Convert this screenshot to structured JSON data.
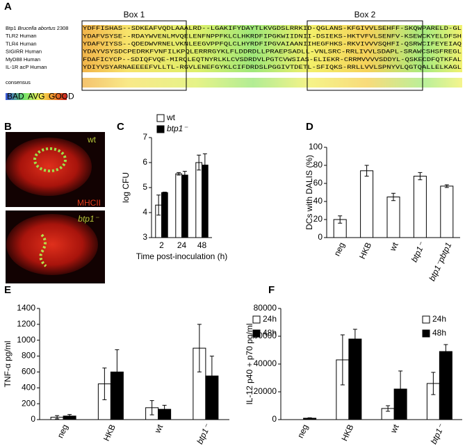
{
  "panel_labels": [
    "A",
    "B",
    "C",
    "D",
    "E",
    "F"
  ],
  "alignment": {
    "box_labels": [
      "Box 1",
      "Box 2"
    ],
    "rows": [
      {
        "name": [
          "Btp1",
          "Brucella abortus",
          "2308"
        ],
        "sequence": "YDFFISHAS--SDKEAFVQDLAAALRD--LGAKIFYDAYTLKVGDSLRRKID-QGLANS-KFGIVVLSEHFF-SKQWPARELD-GL"
      },
      {
        "name": "TLR2 Human",
        "sequence": "YDAFVSYSE--RDAYWVENLMVQELENFNPPFKLCLHKRDFIPGKWIIDNII-DSIEKS-HKTVFVLSENFV-KSEWCKYELDFSH"
      },
      {
        "name": "TLR4 Human",
        "sequence": "YDAFVIYSS--QDEDWVRNELVKNLEEGVPPFQLCLHYRDFIPGVAIAANIIHEGFHKS-RKVIVVVSQHFI-QSRWCIFEYEIAQ"
      },
      {
        "name": "SIGIRR Human",
        "sequence": "YDAYVSYSDCPEDRKFVNFILKPQLERRRGYKLFLDDRDLLPRAEPSADLL-VNLSRC-RRLIVVLSDAPL-SRAWCSHSFREGL"
      },
      {
        "name": "MyD88 Human",
        "sequence": "FDAFICYCP--SDIQFVQE-MIRQLEQTNYRLKLCVSDRDVLPGTCVWSIAS-ELIEKR-CRRMVVVVSDDYL-QSKECDFQTKFAL"
      },
      {
        "name": "IL-1R acP Human",
        "sequence": "YDIYVSYARNAEEEEFVLLTL-RGVLENEFGYKLCIFDRDSLPGGIVTDETL-SFIQKS-RRLLVVLSPNYVLQGTQALLELKAGL"
      }
    ],
    "consensus_label": "consensus",
    "scale_labels": [
      "BAD",
      "AVG",
      "GOOD"
    ]
  },
  "images": {
    "labels": [
      "wt",
      "MHCII",
      "btp1⁻"
    ]
  },
  "chart_data": [
    {
      "type": "bar",
      "ylabel": "log CFU",
      "xlabel": "Time post-inoculation (h)",
      "categories": [
        "2",
        "24",
        "48"
      ],
      "series": [
        {
          "name": "wt",
          "color": "#ffffff",
          "values": [
            4.3,
            5.55,
            6.0
          ],
          "errors": [
            0.4,
            0.05,
            0.3
          ]
        },
        {
          "name": "btp1⁻",
          "color": "#000000",
          "values": [
            4.8,
            5.5,
            5.9
          ],
          "errors": [
            0.02,
            0.15,
            0.45
          ]
        }
      ],
      "ylim": [
        3,
        7
      ],
      "yticks": [
        3,
        4,
        5,
        6,
        7
      ]
    },
    {
      "type": "bar",
      "ylabel": "DCs with DALIS (%)",
      "categories": [
        "neg",
        "HKB",
        "wt",
        "btp1⁻",
        "btp1⁻pbtp1"
      ],
      "values": [
        20,
        74,
        45,
        68,
        57
      ],
      "errors": [
        4,
        6,
        4,
        4,
        1.5
      ],
      "color": "#ffffff",
      "ylim": [
        0,
        100
      ],
      "yticks": [
        0,
        20,
        40,
        60,
        80,
        100
      ]
    },
    {
      "type": "bar",
      "ylabel": "TNF-α pg/ml",
      "categories": [
        "neg",
        "HKB",
        "wt",
        "btp1⁻"
      ],
      "series": [
        {
          "name": "24h",
          "color": "#ffffff",
          "values": [
            30,
            450,
            150,
            900
          ],
          "errors": [
            20,
            200,
            90,
            300
          ]
        },
        {
          "name": "48h",
          "color": "#000000",
          "values": [
            45,
            600,
            130,
            550
          ],
          "errors": [
            20,
            280,
            50,
            250
          ]
        }
      ],
      "ylim": [
        0,
        1400
      ],
      "yticks": [
        0,
        200,
        400,
        600,
        800,
        1000,
        1200,
        1400
      ]
    },
    {
      "type": "bar",
      "ylabel": "IL-12 p40 + p70 pg/ml",
      "categories": [
        "neg",
        "HKB",
        "wt",
        "btp1⁻"
      ],
      "series": [
        {
          "name": "24h",
          "color": "#ffffff",
          "values": [
            0,
            43000,
            8000,
            26000
          ],
          "errors": [
            0,
            18000,
            2000,
            8000
          ]
        },
        {
          "name": "48h",
          "color": "#000000",
          "values": [
            1000,
            58000,
            22000,
            49000
          ],
          "errors": [
            300,
            7000,
            13000,
            5000
          ]
        }
      ],
      "ylim": [
        0,
        80000
      ],
      "yticks": [
        0,
        20000,
        40000,
        60000,
        80000
      ]
    }
  ]
}
